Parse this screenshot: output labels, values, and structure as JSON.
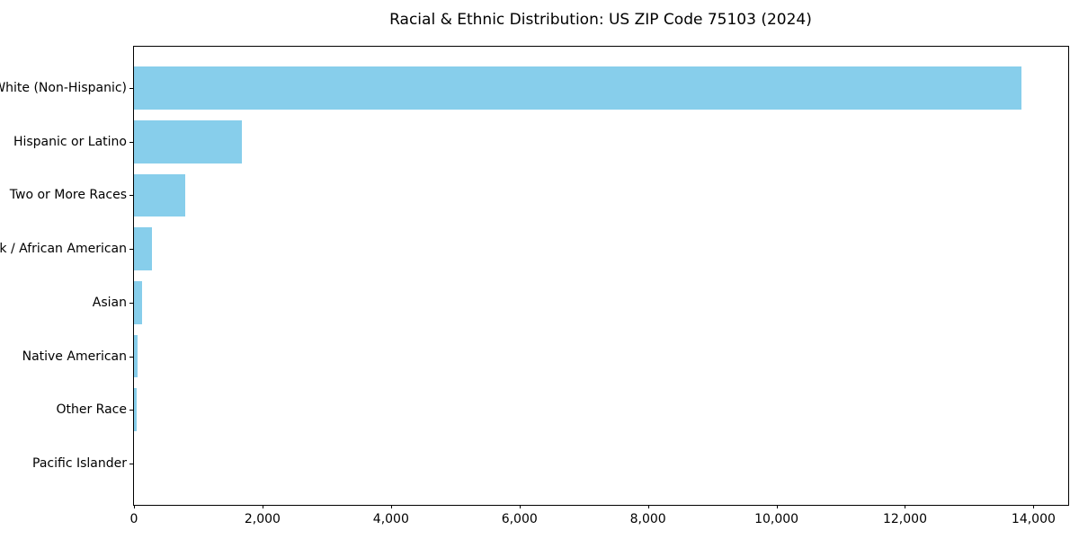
{
  "chart_data": {
    "type": "bar",
    "orientation": "horizontal",
    "title": "Racial & Ethnic Distribution: US ZIP Code 75103 (2024)",
    "categories": [
      "White (Non-Hispanic)",
      "Hispanic or Latino",
      "Two or More Races",
      "Black / African American",
      "Asian",
      "Native American",
      "Other Race",
      "Pacific Islander"
    ],
    "values": [
      13810,
      1680,
      800,
      285,
      125,
      60,
      45,
      0
    ],
    "xlabel": "",
    "ylabel": "",
    "xlim": [
      0,
      14540
    ],
    "x_ticks": [
      0,
      2000,
      4000,
      6000,
      8000,
      10000,
      12000,
      14000
    ],
    "x_tick_labels": [
      "0",
      "2,000",
      "4,000",
      "6,000",
      "8,000",
      "10,000",
      "12,000",
      "14,000"
    ],
    "bar_color": "#87CEEB",
    "axis_color": "#000000",
    "text_color": "#000000",
    "background_color": "#ffffff",
    "grid": false,
    "legend": "none"
  }
}
